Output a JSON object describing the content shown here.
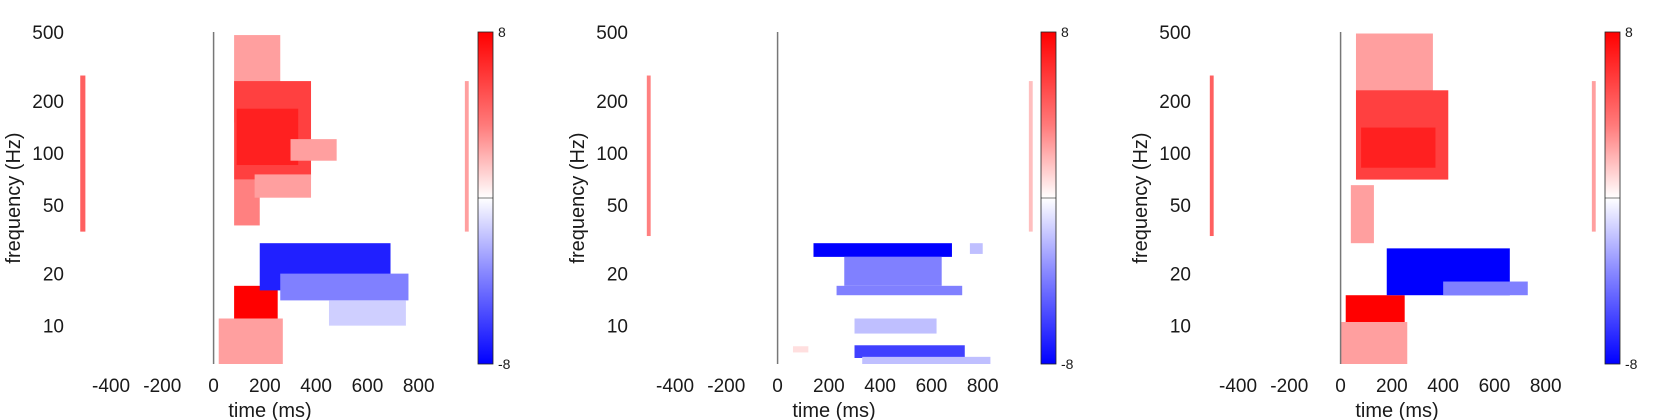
{
  "chart_data": [
    {
      "type": "heatmap",
      "title": "",
      "xlabel": "time (ms)",
      "ylabel": "frequency (Hz)",
      "xlim": [
        -560,
        1000
      ],
      "ylim": [
        6,
        500
      ],
      "yscale": "log",
      "xticks": [
        -400,
        -200,
        0,
        200,
        400,
        600,
        800
      ],
      "yticks": [
        10,
        20,
        50,
        100,
        200,
        500
      ],
      "xtick_labels": [
        "-400",
        "-200",
        "0",
        "200",
        "400",
        "600",
        "800"
      ],
      "ytick_labels": [
        "10",
        "20",
        "50",
        "100",
        "200",
        "500"
      ],
      "event_line_x": 0,
      "colorbar": {
        "min": -8,
        "max": 8,
        "min_label": "-8",
        "max_label": "8",
        "colormap": [
          "#0000ff",
          "#ffffff",
          "#ff0000"
        ]
      },
      "blobs": [
        {
          "t0": 80,
          "t1": 260,
          "f0": 150,
          "f1": 480,
          "v": 3
        },
        {
          "t0": 80,
          "t1": 380,
          "f0": 70,
          "f1": 260,
          "v": 6
        },
        {
          "t0": 90,
          "t1": 330,
          "f0": 85,
          "f1": 180,
          "v": 7
        },
        {
          "t0": 300,
          "t1": 480,
          "f0": 90,
          "f1": 120,
          "v": 3
        },
        {
          "t0": 80,
          "t1": 180,
          "f0": 38,
          "f1": 70,
          "v": 4
        },
        {
          "t0": 160,
          "t1": 380,
          "f0": 55,
          "f1": 75,
          "v": 3
        },
        {
          "t0": 80,
          "t1": 250,
          "f0": 10,
          "f1": 17,
          "v": 8
        },
        {
          "t0": 20,
          "t1": 270,
          "f0": 6,
          "f1": 11,
          "v": 3
        },
        {
          "t0": 180,
          "t1": 690,
          "f0": 16,
          "f1": 30,
          "v": -7
        },
        {
          "t0": 260,
          "t1": 760,
          "f0": 14,
          "f1": 20,
          "v": -4
        },
        {
          "t0": 450,
          "t1": 750,
          "f0": 10,
          "f1": 14,
          "v": -1.5
        },
        {
          "t0": -520,
          "t1": -500,
          "f0": 35,
          "f1": 280,
          "v": 5
        },
        {
          "t0": 980,
          "t1": 995,
          "f0": 35,
          "f1": 260,
          "v": 3
        }
      ]
    },
    {
      "type": "heatmap",
      "title": "",
      "xlabel": "time (ms)",
      "ylabel": "frequency (Hz)",
      "xlim": [
        -560,
        1000
      ],
      "ylim": [
        6,
        500
      ],
      "yscale": "log",
      "xticks": [
        -400,
        -200,
        0,
        200,
        400,
        600,
        800
      ],
      "yticks": [
        10,
        20,
        50,
        100,
        200,
        500
      ],
      "xtick_labels": [
        "-400",
        "-200",
        "0",
        "200",
        "400",
        "600",
        "800"
      ],
      "ytick_labels": [
        "10",
        "20",
        "50",
        "100",
        "200",
        "500"
      ],
      "event_line_x": 0,
      "colorbar": {
        "min": -8,
        "max": 8,
        "min_label": "-8",
        "max_label": "8",
        "colormap": [
          "#0000ff",
          "#ffffff",
          "#ff0000"
        ]
      },
      "blobs": [
        {
          "t0": 140,
          "t1": 680,
          "f0": 25,
          "f1": 30,
          "v": -8
        },
        {
          "t0": 260,
          "t1": 640,
          "f0": 17,
          "f1": 25,
          "v": -4
        },
        {
          "t0": 230,
          "t1": 720,
          "f0": 15,
          "f1": 17,
          "v": -4
        },
        {
          "t0": 300,
          "t1": 620,
          "f0": 9,
          "f1": 11,
          "v": -2
        },
        {
          "t0": 300,
          "t1": 730,
          "f0": 6.5,
          "f1": 7.7,
          "v": -6
        },
        {
          "t0": 330,
          "t1": 830,
          "f0": 6,
          "f1": 6.6,
          "v": -2
        },
        {
          "t0": 750,
          "t1": 800,
          "f0": 26,
          "f1": 30,
          "v": -2
        },
        {
          "t0": 60,
          "t1": 120,
          "f0": 7,
          "f1": 7.6,
          "v": 1
        },
        {
          "t0": -510,
          "t1": -495,
          "f0": 33,
          "f1": 280,
          "v": 4
        },
        {
          "t0": 980,
          "t1": 995,
          "f0": 35,
          "f1": 260,
          "v": 2
        }
      ]
    },
    {
      "type": "heatmap",
      "title": "",
      "xlabel": "time (ms)",
      "ylabel": "frequency (Hz)",
      "xlim": [
        -560,
        1000
      ],
      "ylim": [
        6,
        500
      ],
      "yscale": "log",
      "xticks": [
        -400,
        -200,
        0,
        200,
        400,
        600,
        800
      ],
      "yticks": [
        10,
        20,
        50,
        100,
        200,
        500
      ],
      "xtick_labels": [
        "-400",
        "-200",
        "0",
        "200",
        "400",
        "600",
        "800"
      ],
      "ytick_labels": [
        "10",
        "20",
        "50",
        "100",
        "200",
        "500"
      ],
      "event_line_x": 0,
      "colorbar": {
        "min": -8,
        "max": 8,
        "min_label": "-8",
        "max_label": "8",
        "colormap": [
          "#0000ff",
          "#ffffff",
          "#ff0000"
        ]
      },
      "blobs": [
        {
          "t0": 60,
          "t1": 360,
          "f0": 150,
          "f1": 490,
          "v": 3
        },
        {
          "t0": 60,
          "t1": 420,
          "f0": 70,
          "f1": 230,
          "v": 6
        },
        {
          "t0": 80,
          "t1": 370,
          "f0": 82,
          "f1": 140,
          "v": 7
        },
        {
          "t0": 40,
          "t1": 130,
          "f0": 30,
          "f1": 65,
          "v": 3
        },
        {
          "t0": 20,
          "t1": 250,
          "f0": 10,
          "f1": 15,
          "v": 8
        },
        {
          "t0": 0,
          "t1": 260,
          "f0": 6,
          "f1": 10.5,
          "v": 3
        },
        {
          "t0": 180,
          "t1": 660,
          "f0": 15,
          "f1": 28,
          "v": -8
        },
        {
          "t0": 400,
          "t1": 730,
          "f0": 15,
          "f1": 18,
          "v": -4
        },
        {
          "t0": -510,
          "t1": -495,
          "f0": 33,
          "f1": 280,
          "v": 5
        },
        {
          "t0": 980,
          "t1": 995,
          "f0": 35,
          "f1": 260,
          "v": 3
        }
      ]
    }
  ]
}
